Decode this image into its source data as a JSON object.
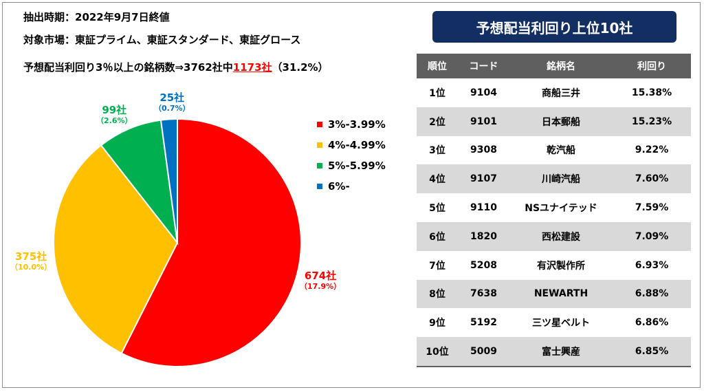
{
  "info": {
    "period": "抽出時期：2022年9月7日終値",
    "market": "対象市場：東証プライム、東証スタンダード、東証グロース",
    "count_prefix": "予想配当利回り3％以上の銘柄数⇒3762社中",
    "count_highlight": "1173社",
    "count_suffix": "（31.2%）"
  },
  "chart_data": {
    "type": "pie",
    "slices": [
      {
        "name": "3%-3.99%",
        "count_label": "674社",
        "pct_label": "（17.9%）",
        "value": 674,
        "color": "#ff0000"
      },
      {
        "name": "4%-4.99%",
        "count_label": "375社",
        "pct_label": "（10.0%）",
        "value": 375,
        "color": "#ffc000"
      },
      {
        "name": "5%-5.99%",
        "count_label": "99社",
        "pct_label": "（2.6%）",
        "value": 99,
        "color": "#00b050"
      },
      {
        "name": "6%-",
        "count_label": "25社",
        "pct_label": "（0.7%）",
        "value": 25,
        "color": "#0070c0"
      }
    ],
    "legend_position": "right"
  },
  "table": {
    "title": "予想配当利回り上位10社",
    "headers": {
      "rank": "順位",
      "code": "コード",
      "name": "銘柄名",
      "yield": "利回り"
    },
    "rows": [
      {
        "rank": "1位",
        "code": "9104",
        "name": "商船三井",
        "yield": "15.38%"
      },
      {
        "rank": "2位",
        "code": "9101",
        "name": "日本郵船",
        "yield": "15.23%"
      },
      {
        "rank": "3位",
        "code": "9308",
        "name": "乾汽船",
        "yield": "9.22%"
      },
      {
        "rank": "4位",
        "code": "9107",
        "name": "川崎汽船",
        "yield": "7.60%"
      },
      {
        "rank": "5位",
        "code": "9110",
        "name": "NSユナイテッド",
        "yield": "7.59%"
      },
      {
        "rank": "6位",
        "code": "1820",
        "name": "西松建設",
        "yield": "7.09%"
      },
      {
        "rank": "7位",
        "code": "5208",
        "name": "有沢製作所",
        "yield": "6.93%"
      },
      {
        "rank": "8位",
        "code": "7638",
        "name": "NEWARTH",
        "yield": "6.88%"
      },
      {
        "rank": "9位",
        "code": "5192",
        "name": "三ツ星ベルト",
        "yield": "6.86%"
      },
      {
        "rank": "10位",
        "code": "5009",
        "name": "富士興産",
        "yield": "6.85%"
      }
    ]
  }
}
